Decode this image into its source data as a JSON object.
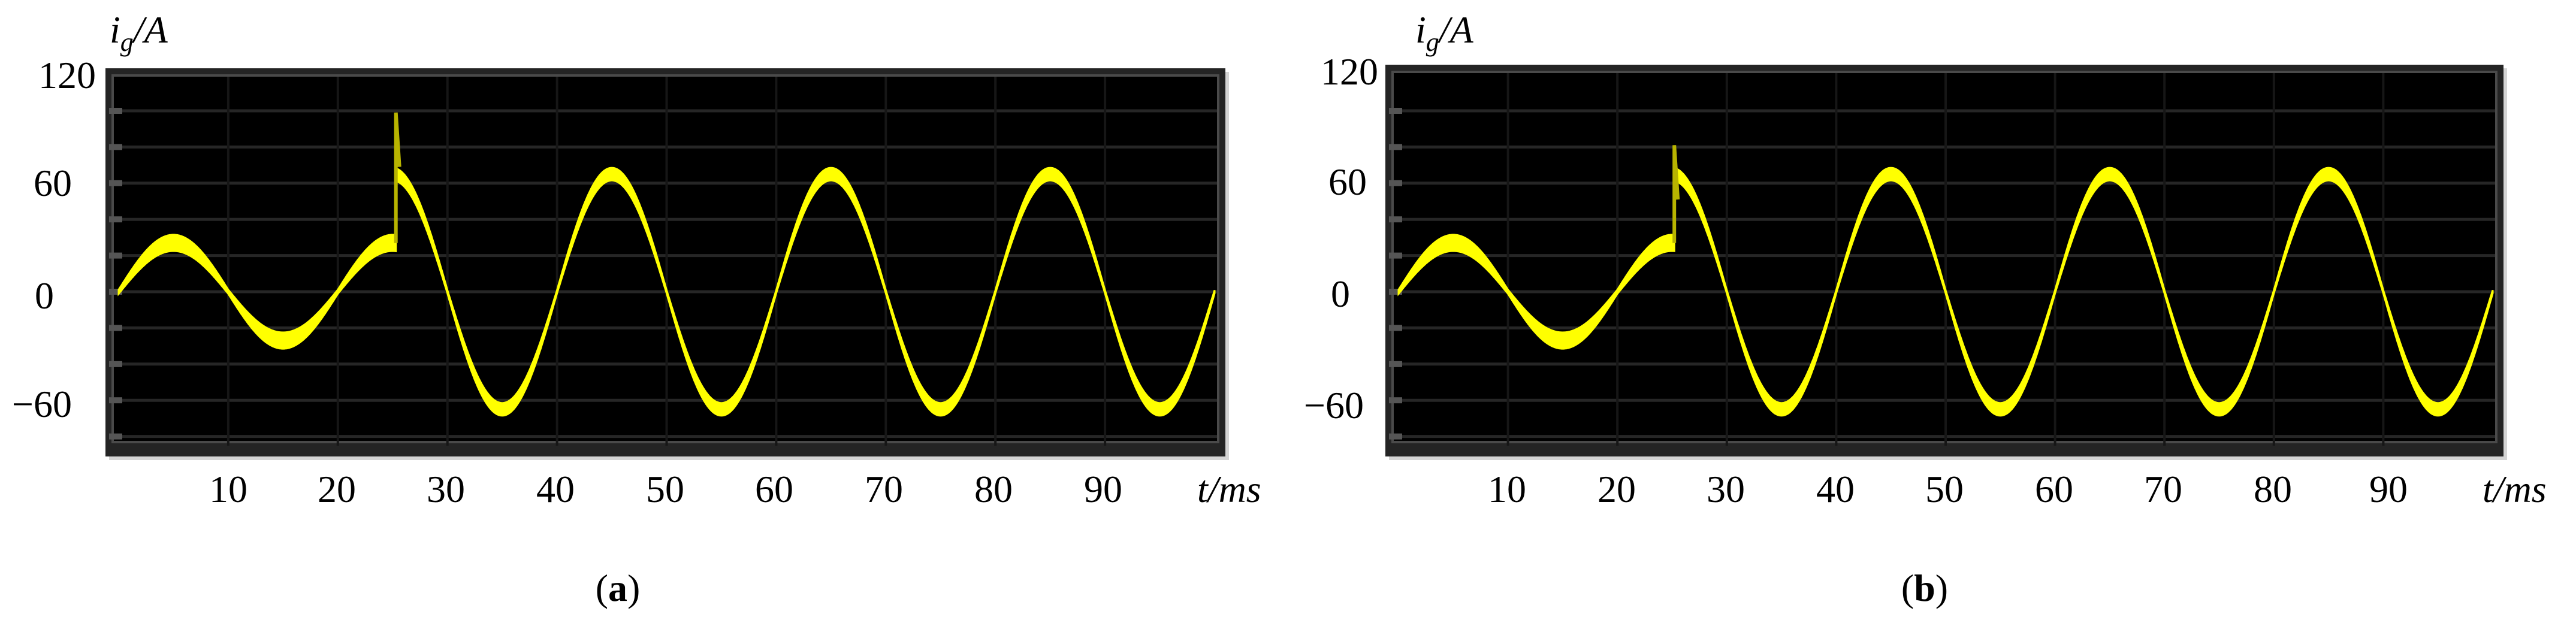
{
  "figure": {
    "panels": [
      {
        "id": "a",
        "caption_letter": "a",
        "y_axis_label_main": "i",
        "y_axis_label_sub": "g",
        "y_axis_label_unit": "/A",
        "x_axis_label": "t/ms",
        "y_ticks": [
          "120",
          "60",
          "0",
          "−60"
        ],
        "x_ticks": [
          "10",
          "20",
          "30",
          "40",
          "50",
          "60",
          "70",
          "80",
          "90"
        ]
      },
      {
        "id": "b",
        "caption_letter": "b",
        "y_axis_label_main": "i",
        "y_axis_label_sub": "g",
        "y_axis_label_unit": "/A",
        "x_axis_label": "t/ms",
        "y_ticks": [
          "120",
          "60",
          "0",
          "−60"
        ],
        "x_ticks": [
          "10",
          "20",
          "30",
          "40",
          "50",
          "60",
          "70",
          "80",
          "90"
        ]
      }
    ],
    "colors": {
      "trace": "#ffff00",
      "plot_background": "#000000",
      "grid": "#262626",
      "frame": "#242424"
    }
  },
  "chart_data": [
    {
      "type": "line",
      "title": "(a)",
      "xlabel": "t/ms",
      "ylabel": "i_g/A",
      "xlim": [
        0,
        100
      ],
      "ylim": [
        -100,
        120
      ],
      "x_ticks": [
        10,
        20,
        30,
        40,
        50,
        60,
        70,
        80,
        90
      ],
      "y_ticks": [
        120,
        60,
        0,
        -60
      ],
      "grid": true,
      "legend": null,
      "series": [
        {
          "name": "i_g",
          "color": "#ffff00",
          "description": "Grid current: 50 Hz sine ~27 A amplitude (0-25.3 ms), step change at ~25.3 ms with transient spike to ~99 A, then 50 Hz sine ~65 A amplitude (25.3-100 ms)",
          "segments": [
            {
              "t_start": 0,
              "t_end": 25.3,
              "amplitude": 27,
              "frequency_hz": 50,
              "phase_deg": 0,
              "band_width": 9
            },
            {
              "t_start": 25.3,
              "t_end": 100,
              "amplitude": 65,
              "frequency_hz": 50,
              "phase_deg": 0,
              "band_width": 7
            }
          ],
          "spike": {
            "t": 25.3,
            "peak": 99
          },
          "x": [
            0,
            5,
            10,
            15,
            20,
            25,
            25.3,
            27,
            35,
            40,
            45,
            50,
            55,
            60,
            65,
            70,
            75,
            80,
            85,
            90,
            95,
            100
          ],
          "y": [
            0,
            22,
            0,
            -31,
            0,
            35,
            99,
            60,
            -67,
            0,
            66,
            0,
            -64,
            0,
            64,
            0,
            -64,
            0,
            63,
            0,
            -64,
            0
          ]
        }
      ]
    },
    {
      "type": "line",
      "title": "(b)",
      "xlabel": "t/ms",
      "ylabel": "i_g/A",
      "xlim": [
        0,
        100
      ],
      "ylim": [
        -100,
        120
      ],
      "x_ticks": [
        10,
        20,
        30,
        40,
        50,
        60,
        70,
        80,
        90
      ],
      "y_ticks": [
        120,
        60,
        0,
        -60
      ],
      "grid": true,
      "legend": null,
      "series": [
        {
          "name": "i_g",
          "color": "#ffff00",
          "description": "Grid current: 50 Hz sine ~27 A amplitude (0-25 ms), step change at ~25 ms with smaller transient spike to ~81 A, then 50 Hz sine ~65 A amplitude (25-100 ms)",
          "segments": [
            {
              "t_start": 0,
              "t_end": 25.2,
              "amplitude": 27,
              "frequency_hz": 50,
              "phase_deg": 0,
              "band_width": 9
            },
            {
              "t_start": 25.2,
              "t_end": 100,
              "amplitude": 65,
              "frequency_hz": 50,
              "phase_deg": 0,
              "band_width": 7
            }
          ],
          "spike": {
            "t": 25.2,
            "peak": 81
          },
          "x": [
            0,
            5,
            10,
            15,
            20,
            25,
            25.2,
            27,
            35,
            40,
            45,
            50,
            55,
            60,
            65,
            70,
            75,
            80,
            85,
            90,
            95,
            100
          ],
          "y": [
            0,
            22,
            0,
            -31,
            0,
            35,
            81,
            62,
            -67,
            0,
            66,
            0,
            -64,
            0,
            64,
            0,
            -63,
            0,
            63,
            0,
            -63,
            0
          ]
        }
      ]
    }
  ]
}
